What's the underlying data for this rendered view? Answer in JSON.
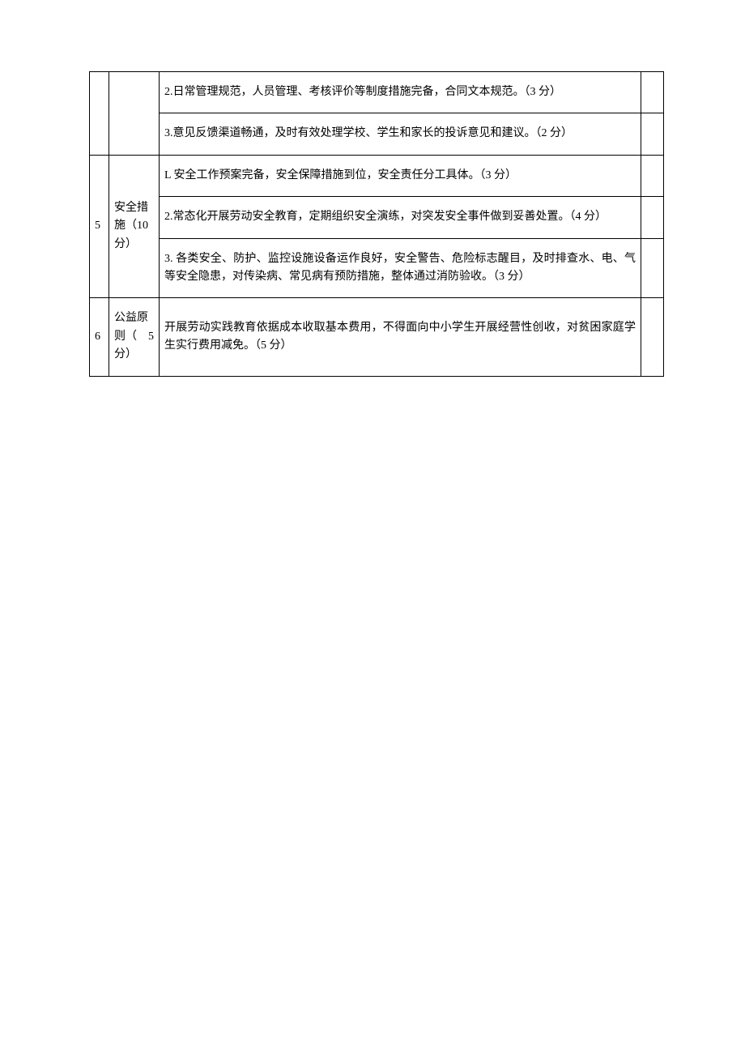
{
  "table": {
    "rows": [
      {
        "num": "",
        "category": "",
        "desc": "2.日常管理规范，人员管理、考核评价等制度措施完备，合同文本规范。（3 分）",
        "score": ""
      },
      {
        "num": "",
        "category": "",
        "desc": "3.意见反馈渠道畅通，及时有效处理学校、学生和家长的投诉意见和建议。（2 分）",
        "score": ""
      },
      {
        "num": "5",
        "category": "安全措施（10分）",
        "desc": "L 安全工作预案完备，安全保障措施到位，安全责任分工具体。（3 分）",
        "score": ""
      },
      {
        "num": "",
        "category": "",
        "desc": "2.常态化开展劳动安全教育，定期组织安全演练，对突发安全事件做到妥善处置。（4 分）",
        "score": ""
      },
      {
        "num": "",
        "category": "",
        "desc": "3. 各类安全、防护、监控设施设备运作良好，安全警告、危险标志醒目，及时排查水、电、气等安全隐患，对传染病、常见病有预防措施，整体通过消防验收。（3 分）",
        "score": ""
      },
      {
        "num": "6",
        "category": "公益原则（　5分）",
        "desc": "开展劳动实践教育依据成本收取基本费用，不得面向中小学生开展经营性创收，对贫困家庭学生实行费用减免。（5 分）",
        "score": ""
      }
    ]
  }
}
